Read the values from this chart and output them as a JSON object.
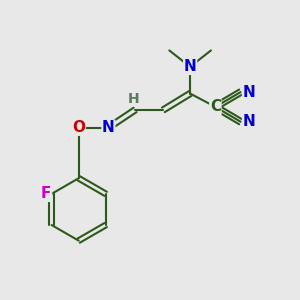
{
  "bg_color": "#e8e8e8",
  "bond_color": "#2d5a1b",
  "bond_width": 1.5,
  "atom_colors": {
    "N": "#0000cc",
    "O": "#cc0000",
    "F": "#cc00cc",
    "C": "#2d5a1b",
    "H": "#5a7a5a"
  },
  "font_size": 11,
  "xlim": [
    0,
    10
  ],
  "ylim": [
    0,
    10
  ]
}
